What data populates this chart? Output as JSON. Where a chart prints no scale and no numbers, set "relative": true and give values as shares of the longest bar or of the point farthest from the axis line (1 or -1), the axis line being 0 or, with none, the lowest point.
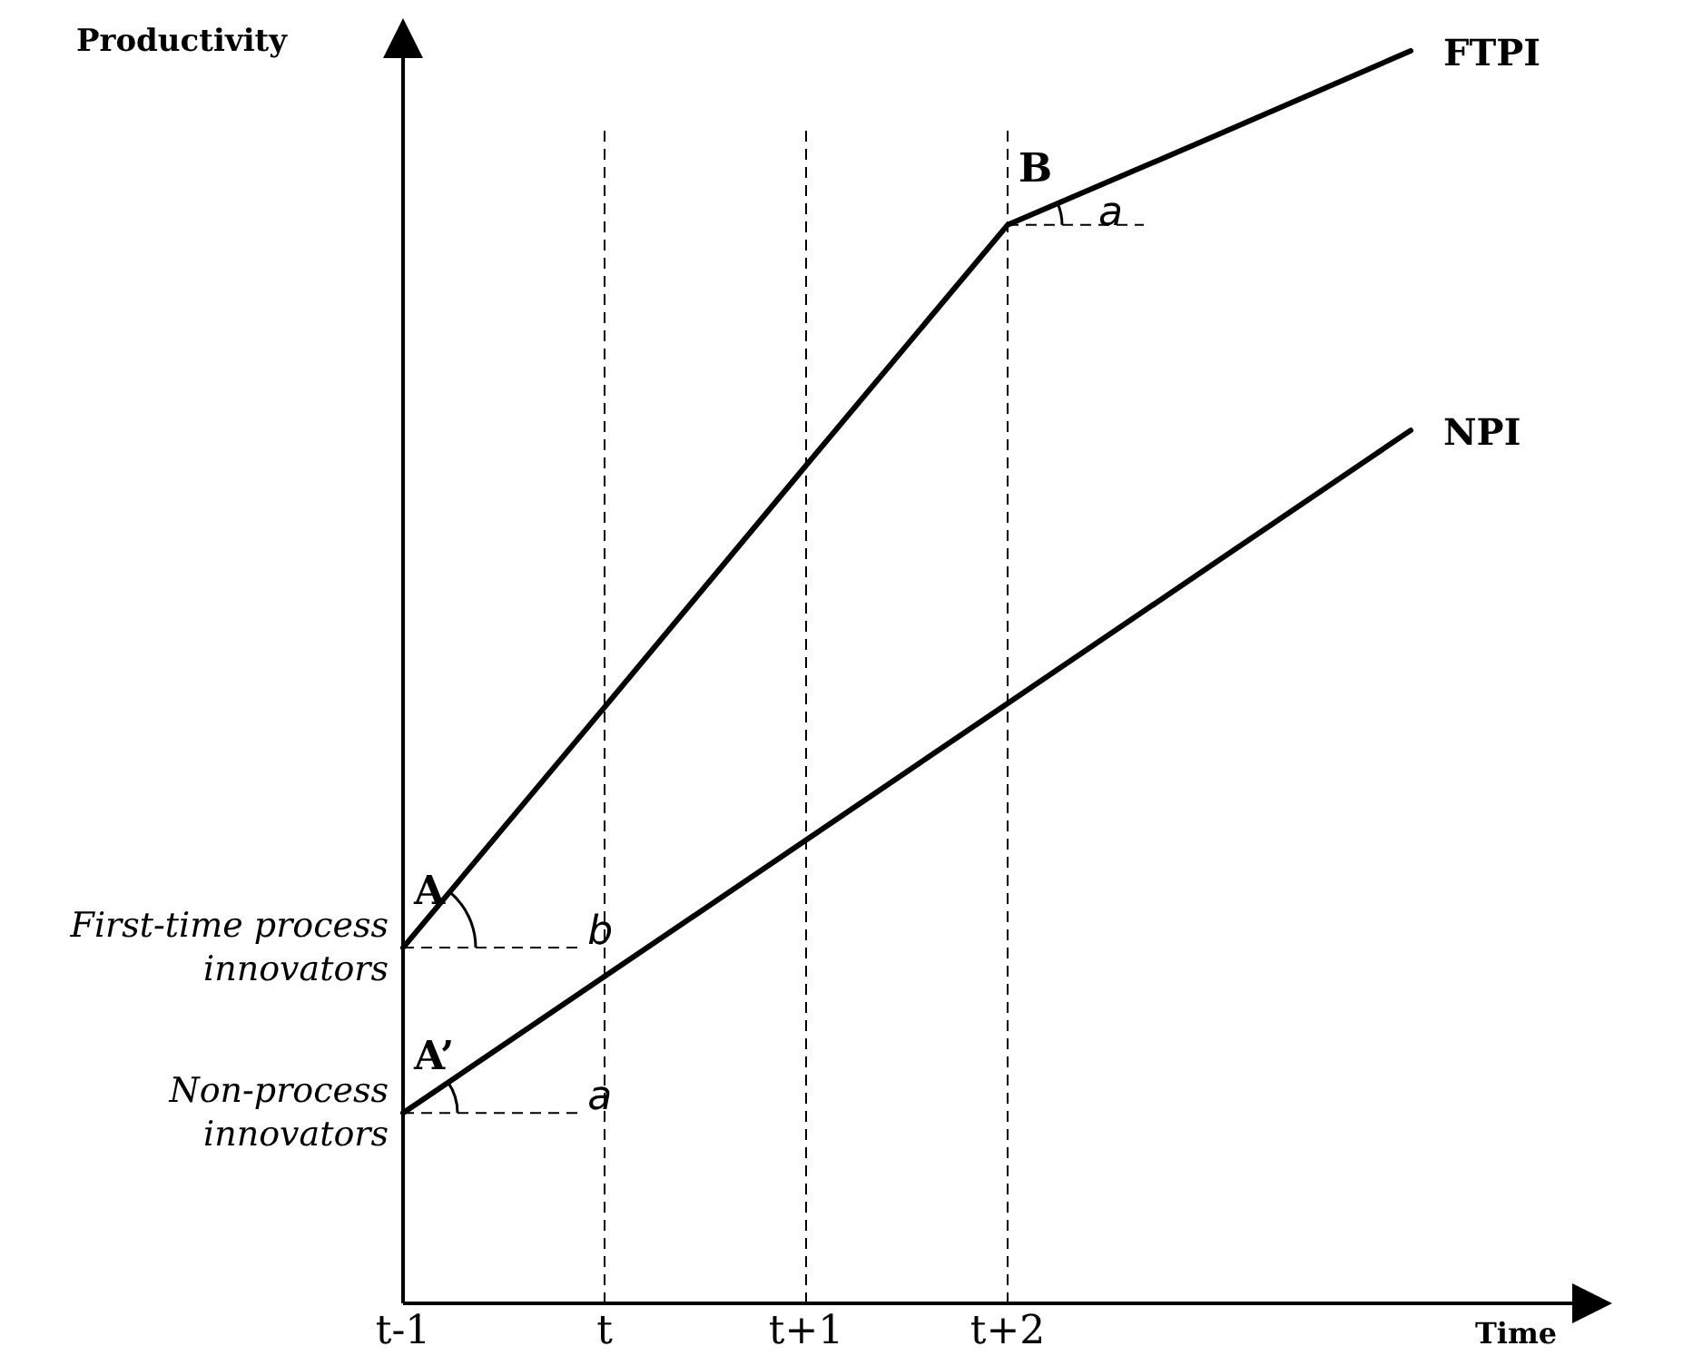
{
  "chart_data": {
    "type": "line",
    "relative": true,
    "xlabel": "Time",
    "ylabel": "Productivity",
    "categories": [
      "t-1",
      "t",
      "t+1",
      "t+2",
      null,
      null
    ],
    "series": [
      {
        "name": "FTPI",
        "color": "#000000",
        "values": [
          0.284,
          0.476,
          0.669,
          0.861,
          0.93,
          1
        ]
      },
      {
        "name": "NPI",
        "color": "#000000",
        "values": [
          0.152,
          0.261,
          0.37,
          0.479,
          0.588,
          0.697
        ]
      }
    ],
    "ref_lines": [
      {
        "axis": "x",
        "value": "t",
        "line_style": "dashed"
      },
      {
        "axis": "x",
        "value": "t+1",
        "line_style": "dashed"
      },
      {
        "axis": "x",
        "value": "t+2",
        "line_style": "dashed"
      }
    ],
    "annotations": [
      {
        "text": "A",
        "x": "t-1",
        "y": 0.284
      },
      {
        "text": "A’",
        "x": "t-1",
        "y": 0.152
      },
      {
        "text": "B",
        "x": "t+2",
        "y": 0.861
      },
      "b",
      "a",
      "a",
      {
        "text": "First-time process innovators",
        "x": "t-1",
        "y": 0.284
      },
      {
        "text": "Non-process innovators",
        "x": "t-1",
        "y": 0.152
      }
    ],
    "grid": false,
    "legend": false,
    "marker": "none",
    "line_style": "solid"
  }
}
